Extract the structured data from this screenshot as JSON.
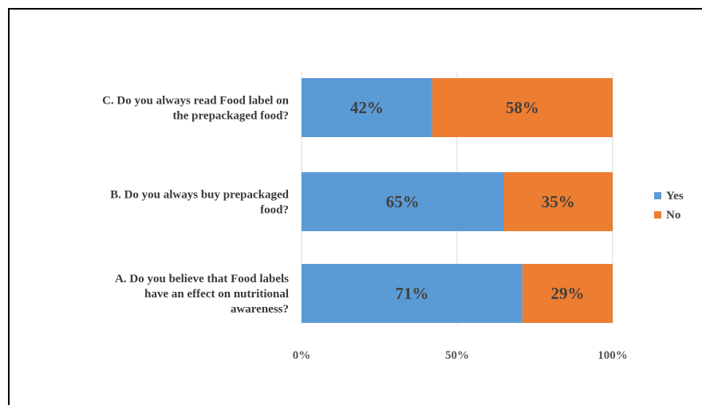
{
  "chart_data": {
    "type": "bar",
    "orientation": "horizontal",
    "stacked": "percent",
    "categories": [
      [
        "C. Do you always read Food label on",
        "the prepackaged food?"
      ],
      [
        "B. Do you always buy prepackaged",
        "food?"
      ],
      [
        "A. Do you believe that Food labels",
        "have an effect on nutritional",
        "awareness?"
      ]
    ],
    "series": [
      {
        "name": "Yes",
        "color": "#5b9bd5",
        "values": [
          42,
          65,
          71
        ],
        "labels": [
          "42%",
          "65%",
          "71%"
        ]
      },
      {
        "name": "No",
        "color": "#ed7d31",
        "values": [
          58,
          35,
          29
        ],
        "labels": [
          "58%",
          "35%",
          "29%"
        ]
      }
    ],
    "xlim": [
      0,
      100
    ],
    "xticks": [
      0,
      50,
      100
    ],
    "xtick_labels": [
      "0%",
      "50%",
      "100%"
    ],
    "grid": "vertical",
    "legend": "right"
  }
}
